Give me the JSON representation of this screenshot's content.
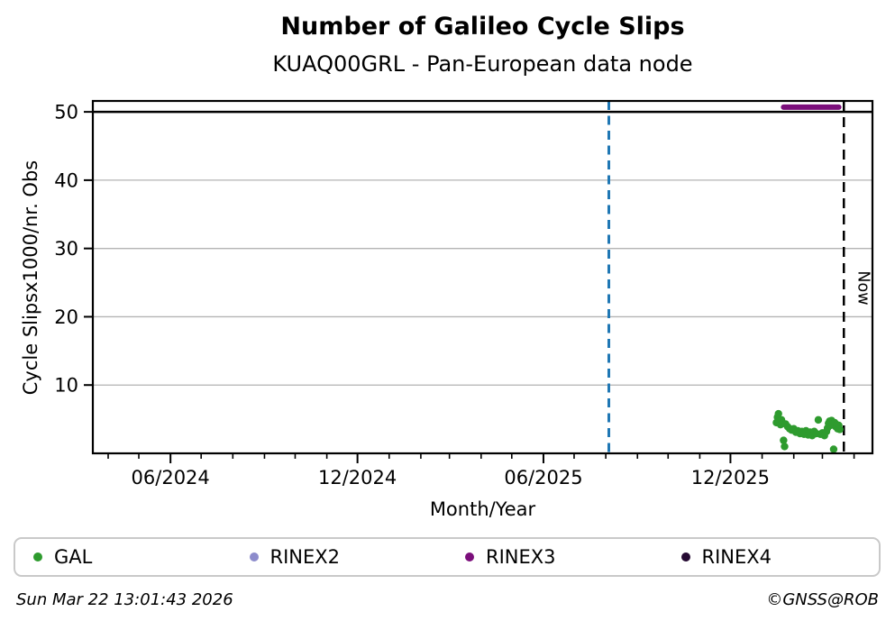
{
  "header": {
    "title": "Number of Galileo Cycle Slips",
    "subtitle": "KUAQ00GRL - Pan-European data node"
  },
  "footer": {
    "timestamp": "Sun Mar 22 13:01:43 2026",
    "credit": "©GNSS@ROB"
  },
  "legend": {
    "items": [
      {
        "label": "GAL",
        "color": "#2e9b2e"
      },
      {
        "label": "RINEX2",
        "color": "#8d8ccc"
      },
      {
        "label": "RINEX3",
        "color": "#7b0e7b"
      },
      {
        "label": "RINEX4",
        "color": "#260b33"
      }
    ]
  },
  "chart_data": {
    "type": "scatter",
    "title": "Number of Galileo Cycle Slips",
    "subtitle": "KUAQ00GRL - Pan-European data node",
    "xlabel": "Month/Year",
    "ylabel": "Cycle Slipsx1000/nr. Obs",
    "x_range": [
      "2024-03-17",
      "2026-04-19"
    ],
    "y_range": [
      0,
      51.6
    ],
    "x_ticks": [
      {
        "label": "06/2024",
        "date": "2024-06-01"
      },
      {
        "label": "12/2024",
        "date": "2024-12-01"
      },
      {
        "label": "06/2025",
        "date": "2025-06-01"
      },
      {
        "label": "12/2025",
        "date": "2025-12-01"
      }
    ],
    "x_minor_ticks_monthly": true,
    "y_ticks": [
      10,
      20,
      30,
      40,
      50
    ],
    "grid": {
      "color": "#b3b3b3",
      "on": true
    },
    "cap_line_value": 50,
    "vlines": [
      {
        "name": "event-line",
        "date": "2025-08-04",
        "color": "#1f77b4",
        "style": "dashed",
        "label": ""
      },
      {
        "name": "now-line",
        "date": "2026-03-22",
        "color": "#000000",
        "style": "dashed",
        "label": "Now"
      }
    ],
    "series": [
      {
        "name": "GAL",
        "color": "#2e9b2e",
        "type": "points",
        "points": [
          {
            "date": "2026-01-15",
            "value": 4.5
          },
          {
            "date": "2026-01-16",
            "value": 5.3
          },
          {
            "date": "2026-01-17",
            "value": 5.8
          },
          {
            "date": "2026-01-18",
            "value": 4.7
          },
          {
            "date": "2026-01-19",
            "value": 4.2
          },
          {
            "date": "2026-01-20",
            "value": 4.9
          },
          {
            "date": "2026-01-21",
            "value": 4.4
          },
          {
            "date": "2026-01-22",
            "value": 1.9
          },
          {
            "date": "2026-01-23",
            "value": 1.0
          },
          {
            "date": "2026-01-24",
            "value": 4.3
          },
          {
            "date": "2026-01-26",
            "value": 3.9
          },
          {
            "date": "2026-01-28",
            "value": 3.6
          },
          {
            "date": "2026-01-30",
            "value": 3.4
          },
          {
            "date": "2026-02-01",
            "value": 3.6
          },
          {
            "date": "2026-02-03",
            "value": 3.1
          },
          {
            "date": "2026-02-05",
            "value": 3.3
          },
          {
            "date": "2026-02-07",
            "value": 2.9
          },
          {
            "date": "2026-02-09",
            "value": 3.2
          },
          {
            "date": "2026-02-11",
            "value": 2.8
          },
          {
            "date": "2026-02-13",
            "value": 3.3
          },
          {
            "date": "2026-02-15",
            "value": 2.7
          },
          {
            "date": "2026-02-17",
            "value": 3.1
          },
          {
            "date": "2026-02-19",
            "value": 2.6
          },
          {
            "date": "2026-02-21",
            "value": 3.2
          },
          {
            "date": "2026-02-23",
            "value": 2.9
          },
          {
            "date": "2026-02-25",
            "value": 4.9
          },
          {
            "date": "2026-02-27",
            "value": 2.8
          },
          {
            "date": "2026-03-01",
            "value": 3.0
          },
          {
            "date": "2026-03-03",
            "value": 2.6
          },
          {
            "date": "2026-03-05",
            "value": 3.2
          },
          {
            "date": "2026-03-06",
            "value": 3.7
          },
          {
            "date": "2026-03-07",
            "value": 4.4
          },
          {
            "date": "2026-03-08",
            "value": 4.7
          },
          {
            "date": "2026-03-09",
            "value": 4.1
          },
          {
            "date": "2026-03-10",
            "value": 4.8
          },
          {
            "date": "2026-03-11",
            "value": 4.3
          },
          {
            "date": "2026-03-12",
            "value": 0.6
          },
          {
            "date": "2026-03-13",
            "value": 4.5
          },
          {
            "date": "2026-03-14",
            "value": 3.9
          },
          {
            "date": "2026-03-15",
            "value": 4.2
          },
          {
            "date": "2026-03-16",
            "value": 3.6
          },
          {
            "date": "2026-03-17",
            "value": 4.1
          },
          {
            "date": "2026-03-18",
            "value": 3.5
          }
        ]
      },
      {
        "name": "RINEX2",
        "color": "#8d8ccc",
        "type": "points",
        "points": []
      },
      {
        "name": "RINEX3",
        "color": "#7b0e7b",
        "type": "segment",
        "start": "2026-01-22",
        "end": "2026-03-17",
        "value": 50.7
      },
      {
        "name": "RINEX4",
        "color": "#260b33",
        "type": "points",
        "points": []
      }
    ]
  }
}
